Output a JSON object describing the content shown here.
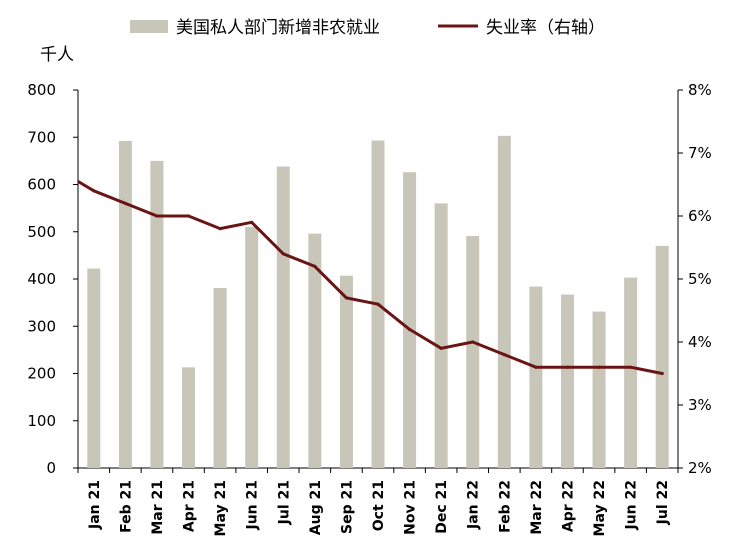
{
  "chart_data": {
    "type": "bar+line",
    "categories": [
      "Jan 21",
      "Feb 21",
      "Mar 21",
      "Apr 21",
      "May 21",
      "Jun 21",
      "Jul 21",
      "Aug 21",
      "Sep 21",
      "Oct 21",
      "Nov 21",
      "Dec 21",
      "Jan 22",
      "Feb 22",
      "Mar 22",
      "Apr 22",
      "May 22",
      "Jun 22",
      "Jul 22"
    ],
    "series": [
      {
        "name": "美国私人部门新增非农就业",
        "type": "bar",
        "axis": "left",
        "color": "#c8c6b8",
        "values": [
          422,
          692,
          650,
          213,
          381,
          510,
          638,
          496,
          407,
          693,
          626,
          560,
          491,
          703,
          384,
          367,
          331,
          403,
          470
        ]
      },
      {
        "name": "失业率（右轴）",
        "type": "line",
        "axis": "right",
        "color": "#6b1414",
        "values": [
          6.4,
          6.2,
          6.0,
          6.0,
          5.8,
          5.9,
          5.4,
          5.2,
          4.7,
          4.6,
          4.2,
          3.9,
          4.0,
          3.8,
          3.6,
          3.6,
          3.6,
          3.6,
          3.5
        ]
      }
    ],
    "left_axis": {
      "unit": "千人",
      "ylim": [
        0,
        800
      ],
      "ticks": [
        "0",
        "100",
        "200",
        "300",
        "400",
        "500",
        "600",
        "700",
        "800"
      ]
    },
    "right_axis": {
      "ylim": [
        2,
        8
      ],
      "ticks": [
        "2%",
        "3%",
        "4%",
        "5%",
        "6%",
        "7%",
        "8%"
      ]
    },
    "grid": false,
    "legend_placement": "top"
  }
}
